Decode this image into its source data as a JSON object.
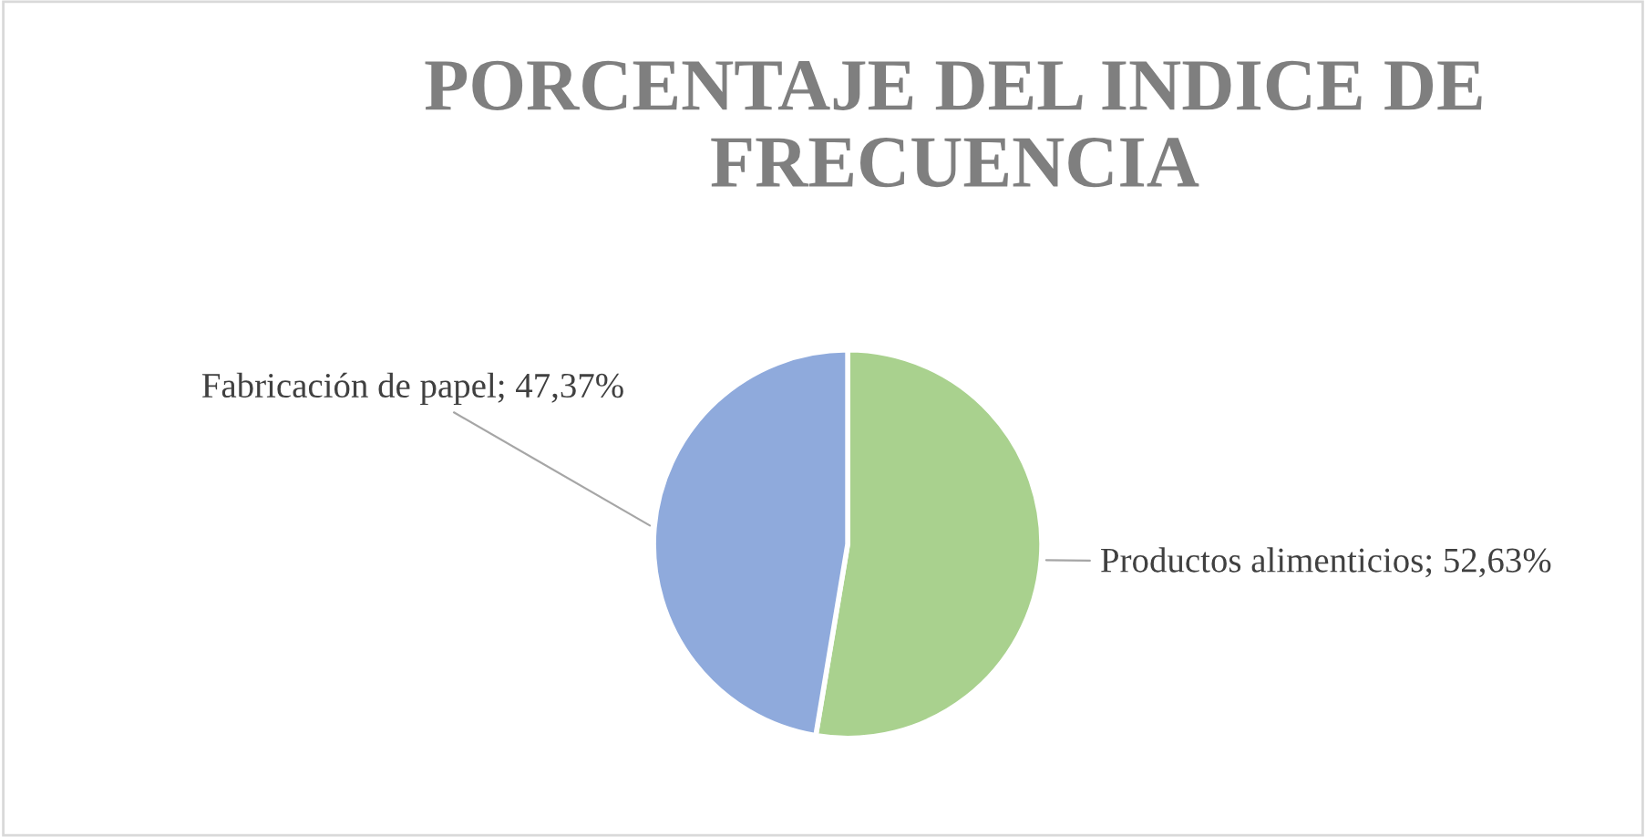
{
  "chart_data": {
    "type": "pie",
    "title": "PORCENTAJE DEL INDICE DE FRECUENCIA",
    "categories": [
      "Productos alimenticios",
      "Fabricación de papel"
    ],
    "values": [
      52.63,
      47.37
    ],
    "colors": [
      "#a9d18e",
      "#8faadc"
    ],
    "value_labels": [
      "52,63%",
      "47,37%"
    ],
    "legend": false
  }
}
